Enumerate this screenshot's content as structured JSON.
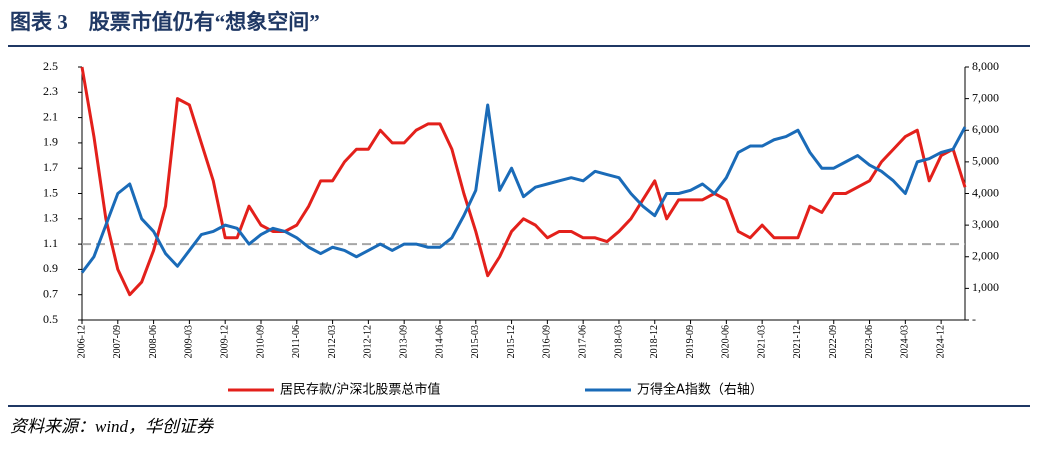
{
  "chart_data": {
    "type": "line",
    "title": "图表 3　股票市值仍有“想象空间”",
    "source": "资料来源：wind，华创证券",
    "categories": [
      "2006-12",
      null,
      null,
      "2007-09",
      null,
      null,
      "2008-06",
      null,
      null,
      "2009-03",
      null,
      null,
      "2009-12",
      null,
      null,
      "2010-09",
      null,
      null,
      "2011-06",
      null,
      null,
      "2012-03",
      null,
      null,
      "2012-12",
      null,
      null,
      "2013-09",
      null,
      null,
      "2014-06",
      null,
      null,
      "2015-03",
      null,
      null,
      "2015-12",
      null,
      null,
      "2016-09",
      null,
      null,
      "2017-06",
      null,
      null,
      "2018-03",
      null,
      null,
      "2018-12",
      null,
      null,
      "2019-09",
      null,
      null,
      "2020-06",
      null,
      null,
      "2021-03",
      null,
      null,
      "2021-12",
      null,
      null,
      "2022-09",
      null,
      null,
      "2023-06",
      null,
      null,
      "2024-03",
      null,
      null,
      "2024-12",
      null,
      null
    ],
    "series": [
      {
        "name": "居民存款/沪深北股票总市值",
        "color": "#e3201b",
        "values": [
          2.5,
          1.95,
          1.3,
          0.9,
          0.7,
          0.8,
          1.05,
          1.4,
          2.25,
          2.2,
          1.9,
          1.6,
          1.15,
          1.15,
          1.4,
          1.25,
          1.2,
          1.2,
          1.25,
          1.4,
          1.6,
          1.6,
          1.75,
          1.85,
          1.85,
          2.0,
          1.9,
          1.9,
          2.0,
          2.05,
          2.05,
          1.85,
          1.5,
          1.2,
          0.85,
          1.0,
          1.2,
          1.3,
          1.25,
          1.15,
          1.2,
          1.2,
          1.15,
          1.15,
          1.12,
          1.2,
          1.3,
          1.45,
          1.6,
          1.3,
          1.45,
          1.45,
          1.45,
          1.5,
          1.45,
          1.2,
          1.15,
          1.25,
          1.15,
          1.15,
          1.15,
          1.4,
          1.35,
          1.5,
          1.5,
          1.55,
          1.6,
          1.75,
          1.85,
          1.95,
          2.0,
          1.6,
          1.8,
          1.85,
          1.55
        ]
      },
      {
        "name": "万得全A指数（右轴）",
        "color": "#1a6bb8",
        "axis": "y2",
        "values": [
          1500,
          2000,
          3000,
          4000,
          4300,
          3200,
          2800,
          2100,
          1700,
          2200,
          2700,
          2800,
          3000,
          2900,
          2400,
          2700,
          2900,
          2800,
          2600,
          2300,
          2100,
          2300,
          2200,
          2000,
          2200,
          2400,
          2200,
          2400,
          2400,
          2300,
          2300,
          2600,
          3300,
          4100,
          6800,
          4100,
          4800,
          3900,
          4200,
          4300,
          4400,
          4500,
          4400,
          4700,
          4600,
          4500,
          4000,
          3600,
          3300,
          4000,
          4000,
          4100,
          4300,
          4000,
          4500,
          5300,
          5500,
          5500,
          5700,
          5800,
          6000,
          5300,
          4800,
          4800,
          5000,
          5200,
          4900,
          4700,
          4400,
          4000,
          5000,
          5100,
          5300,
          5400,
          6100
        ]
      }
    ],
    "ylim": [
      0.5,
      2.5
    ],
    "yticks": [
      0.5,
      0.7,
      0.9,
      1.1,
      1.3,
      1.5,
      1.7,
      1.9,
      2.1,
      2.3,
      2.5
    ],
    "y2lim": [
      0,
      8000
    ],
    "y2ticks": [
      {
        "value": 0,
        "label": "-"
      },
      {
        "value": 1000,
        "label": "1,000"
      },
      {
        "value": 2000,
        "label": "2,000"
      },
      {
        "value": 3000,
        "label": "3,000"
      },
      {
        "value": 4000,
        "label": "4,000"
      },
      {
        "value": 5000,
        "label": "5,000"
      },
      {
        "value": 6000,
        "label": "6,000"
      },
      {
        "value": 7000,
        "label": "7,000"
      },
      {
        "value": 8000,
        "label": "8,000"
      }
    ],
    "reference_line": {
      "value": 1.1,
      "color": "#a6a6a6"
    },
    "legend": "bottom"
  }
}
